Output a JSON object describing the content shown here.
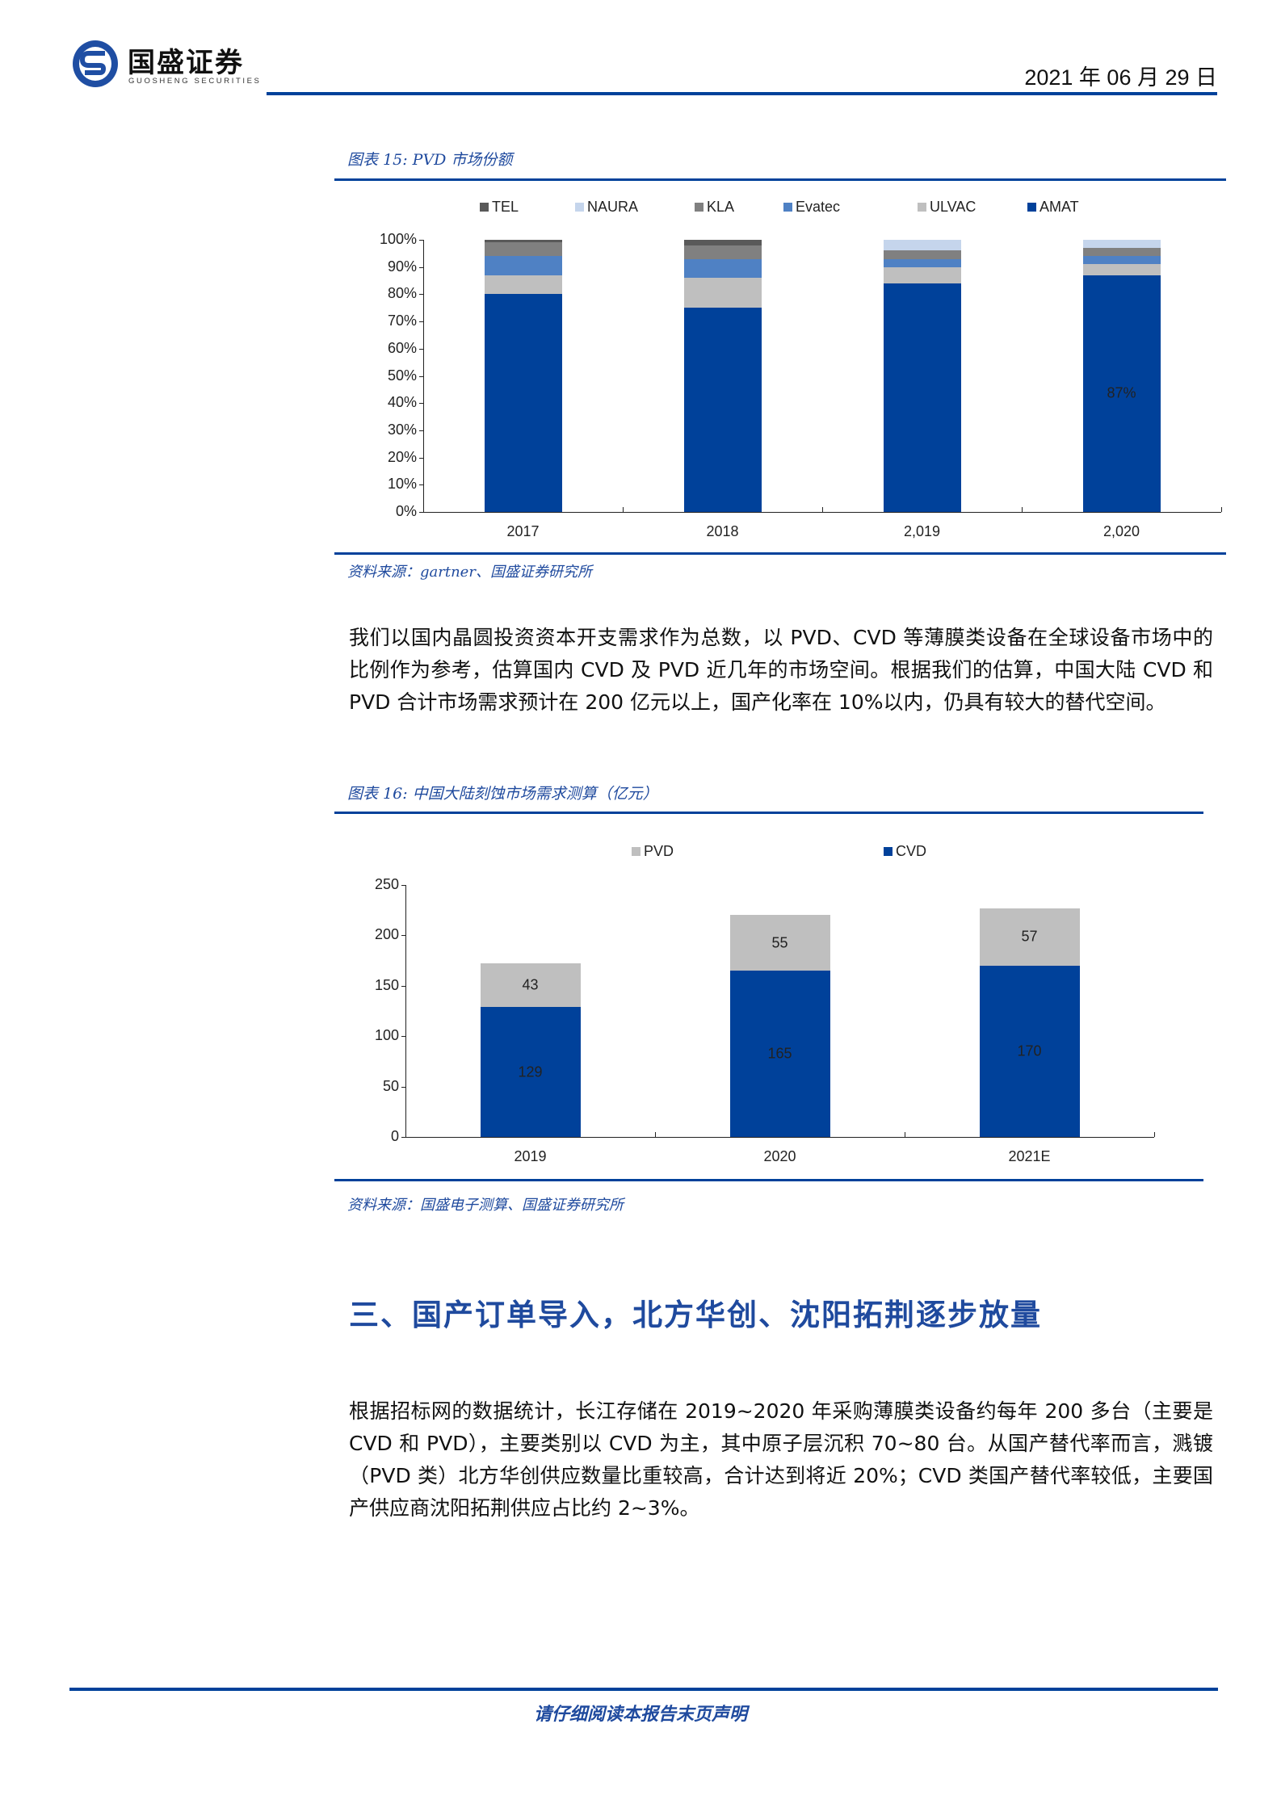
{
  "header": {
    "logo_cn": "国盛证券",
    "logo_en": "GUOSHENG SECURITIES",
    "date": "2021 年 06 月 29 日",
    "brand_color": "#00419a"
  },
  "figure15": {
    "title": "图表 15:  PVD 市场份额",
    "source": "资料来源：gartner、国盛证券研究所",
    "data_label": "87%"
  },
  "paragraph1": "我们以国内晶圆投资资本开支需求作为总数，以 PVD、CVD 等薄膜类设备在全球设备市场中的比例作为参考，估算国内 CVD 及 PVD 近几年的市场空间。根据我们的估算，中国大陆 CVD 和 PVD 合计市场需求预计在 200 亿元以上，国产化率在 10%以内，仍具有较大的替代空间。",
  "figure16": {
    "title": "图表 16:  中国大陆刻蚀市场需求测算（亿元）",
    "source": "资料来源：国盛电子测算、国盛证券研究所"
  },
  "section3": {
    "title": "三、国产订单导入，北方华创、沈阳拓荆逐步放量",
    "paragraph": "根据招标网的数据统计，长江存储在 2019~2020 年采购薄膜类设备约每年 200 多台（主要是 CVD 和 PVD），主要类别以 CVD 为主，其中原子层沉积 70~80 台。从国产替代率而言，溅镀（PVD 类）北方华创供应数量比重较高，合计达到将近 20%；CVD 类国产替代率较低，主要国产供应商沈阳拓荆供应占比约 2~3%。"
  },
  "footer": {
    "disclaimer": "请仔细阅读本报告末页声明"
  },
  "chart_data": [
    {
      "type": "bar",
      "stacked": true,
      "title": "PVD 市场份额",
      "categories": [
        "2017",
        "2018",
        "2,019",
        "2,020"
      ],
      "series": [
        {
          "name": "AMAT",
          "color": "#00419a",
          "values": [
            80,
            75,
            84,
            87
          ]
        },
        {
          "name": "ULVAC",
          "color": "#bfbfbf",
          "values": [
            7,
            11,
            6,
            4
          ]
        },
        {
          "name": "Evatec",
          "color": "#4f81c4",
          "values": [
            7,
            7,
            3,
            3
          ]
        },
        {
          "name": "KLA",
          "color": "#808080",
          "values": [
            5,
            5,
            3,
            3
          ]
        },
        {
          "name": "NAURA",
          "color": "#c5d5ec",
          "values": [
            0,
            0,
            4,
            3
          ]
        },
        {
          "name": "TEL",
          "color": "#595959",
          "values": [
            1,
            2,
            0,
            0
          ]
        }
      ],
      "legend": [
        "TEL",
        "NAURA",
        "KLA",
        "Evatec",
        "ULVAC",
        "AMAT"
      ],
      "legend_position": "top",
      "y_ticks": [
        "0%",
        "10%",
        "20%",
        "30%",
        "40%",
        "50%",
        "60%",
        "70%",
        "80%",
        "90%",
        "100%"
      ],
      "ylim": [
        0,
        100
      ],
      "annotations": [
        {
          "category": "2,020",
          "series": "AMAT",
          "text": "87%"
        }
      ],
      "grid": false,
      "xlabel": "",
      "ylabel": ""
    },
    {
      "type": "bar",
      "stacked": true,
      "title": "中国大陆刻蚀市场需求测算（亿元）",
      "categories": [
        "2019",
        "2020",
        "2021E"
      ],
      "series": [
        {
          "name": "CVD",
          "color": "#00419a",
          "values": [
            129,
            165,
            170
          ]
        },
        {
          "name": "PVD",
          "color": "#bfbfbf",
          "values": [
            43,
            55,
            57
          ]
        }
      ],
      "legend": [
        "PVD",
        "CVD"
      ],
      "legend_position": "top",
      "y_ticks": [
        "0",
        "50",
        "100",
        "150",
        "200",
        "250"
      ],
      "ylim": [
        0,
        250
      ],
      "grid": false,
      "xlabel": "",
      "ylabel": ""
    }
  ]
}
